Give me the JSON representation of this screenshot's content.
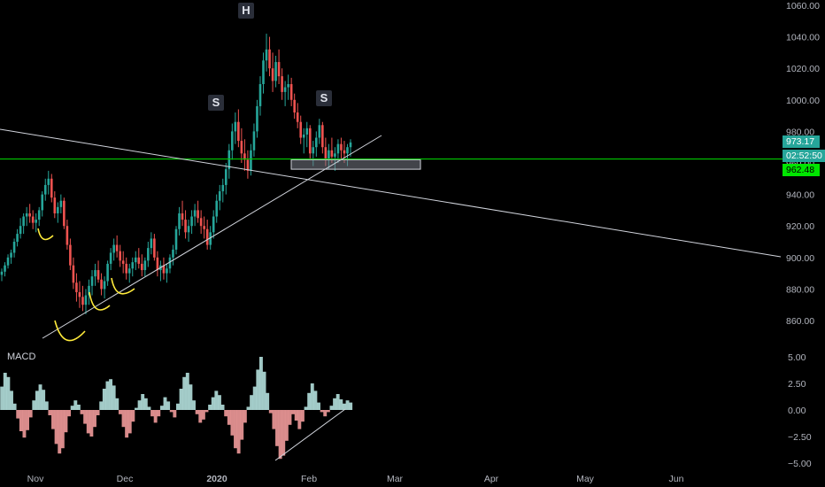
{
  "chart_data": {
    "type": "candlestick",
    "instrument_panel": "price",
    "price_axis": {
      "ticks": [
        1060,
        1040,
        1020,
        1000,
        980,
        960,
        940,
        920,
        900,
        880,
        860
      ],
      "tick_labels": [
        "1060.00",
        "1040.00",
        "1020.00",
        "1000.00",
        "980.00",
        "960.00",
        "940.00",
        "920.00",
        "900.00",
        "880.00",
        "860.00"
      ],
      "range": [
        847,
        1064
      ]
    },
    "time_axis": {
      "labels": [
        "Nov",
        "Dec",
        "2020",
        "Feb",
        "Mar",
        "Apr",
        "May",
        "Jun"
      ]
    },
    "badges": {
      "last_price": "973.17",
      "timer": "02:52:50",
      "level_price": "962.48"
    },
    "pattern_labels": [
      "H",
      "S",
      "S"
    ],
    "level_line_value": 962.48,
    "support_zone": {
      "low": 956,
      "high": 962
    },
    "candles": [
      [
        889,
        893,
        885,
        891
      ],
      [
        891,
        897,
        888,
        895
      ],
      [
        895,
        902,
        893,
        900
      ],
      [
        900,
        905,
        896,
        903
      ],
      [
        903,
        912,
        900,
        910
      ],
      [
        910,
        918,
        907,
        915
      ],
      [
        915,
        925,
        912,
        920
      ],
      [
        920,
        928,
        915,
        926
      ],
      [
        926,
        932,
        920,
        928
      ],
      [
        928,
        934,
        922,
        926
      ],
      [
        926,
        930,
        918,
        922
      ],
      [
        922,
        928,
        916,
        924
      ],
      [
        924,
        932,
        920,
        930
      ],
      [
        930,
        942,
        926,
        940
      ],
      [
        940,
        950,
        936,
        946
      ],
      [
        946,
        955,
        940,
        950
      ],
      [
        950,
        953,
        935,
        938
      ],
      [
        938,
        942,
        925,
        928
      ],
      [
        928,
        935,
        922,
        932
      ],
      [
        932,
        940,
        928,
        936
      ],
      [
        936,
        938,
        918,
        920
      ],
      [
        920,
        924,
        905,
        908
      ],
      [
        908,
        912,
        892,
        895
      ],
      [
        895,
        900,
        880,
        884
      ],
      [
        884,
        890,
        872,
        878
      ],
      [
        878,
        885,
        868,
        875
      ],
      [
        875,
        882,
        866,
        870
      ],
      [
        870,
        880,
        864,
        876
      ],
      [
        876,
        886,
        870,
        882
      ],
      [
        882,
        892,
        876,
        888
      ],
      [
        888,
        896,
        882,
        892
      ],
      [
        892,
        898,
        884,
        886
      ],
      [
        886,
        890,
        876,
        880
      ],
      [
        880,
        888,
        874,
        885
      ],
      [
        885,
        898,
        882,
        896
      ],
      [
        896,
        906,
        892,
        903
      ],
      [
        903,
        912,
        898,
        908
      ],
      [
        908,
        914,
        900,
        904
      ],
      [
        904,
        908,
        894,
        898
      ],
      [
        898,
        904,
        890,
        896
      ],
      [
        896,
        900,
        886,
        890
      ],
      [
        890,
        896,
        884,
        893
      ],
      [
        893,
        900,
        888,
        897
      ],
      [
        897,
        904,
        892,
        900
      ],
      [
        900,
        906,
        893,
        896
      ],
      [
        896,
        902,
        888,
        892
      ],
      [
        892,
        900,
        888,
        898
      ],
      [
        898,
        910,
        894,
        906
      ],
      [
        906,
        916,
        902,
        912
      ],
      [
        912,
        915,
        898,
        900
      ],
      [
        900,
        904,
        888,
        892
      ],
      [
        892,
        898,
        885,
        895
      ],
      [
        895,
        900,
        886,
        890
      ],
      [
        890,
        896,
        884,
        893
      ],
      [
        893,
        902,
        890,
        900
      ],
      [
        900,
        908,
        895,
        905
      ],
      [
        905,
        920,
        902,
        918
      ],
      [
        918,
        932,
        914,
        928
      ],
      [
        928,
        936,
        920,
        924
      ],
      [
        924,
        930,
        912,
        916
      ],
      [
        916,
        924,
        910,
        920
      ],
      [
        920,
        930,
        915,
        926
      ],
      [
        926,
        934,
        920,
        930
      ],
      [
        930,
        936,
        922,
        925
      ],
      [
        925,
        930,
        915,
        920
      ],
      [
        920,
        926,
        912,
        918
      ],
      [
        918,
        924,
        905,
        908
      ],
      [
        908,
        920,
        905,
        916
      ],
      [
        916,
        930,
        912,
        926
      ],
      [
        926,
        940,
        922,
        936
      ],
      [
        936,
        946,
        930,
        942
      ],
      [
        942,
        950,
        935,
        946
      ],
      [
        946,
        960,
        940,
        956
      ],
      [
        956,
        972,
        950,
        968
      ],
      [
        968,
        985,
        962,
        980
      ],
      [
        980,
        992,
        972,
        986
      ],
      [
        986,
        994,
        970,
        974
      ],
      [
        974,
        982,
        960,
        966
      ],
      [
        966,
        975,
        955,
        962
      ],
      [
        962,
        968,
        950,
        955
      ],
      [
        955,
        972,
        952,
        968
      ],
      [
        968,
        985,
        964,
        980
      ],
      [
        980,
        1000,
        976,
        996
      ],
      [
        996,
        1015,
        990,
        1010
      ],
      [
        1010,
        1030,
        1004,
        1025
      ],
      [
        1025,
        1042,
        1018,
        1032
      ],
      [
        1032,
        1040,
        1015,
        1020
      ],
      [
        1020,
        1030,
        1005,
        1012
      ],
      [
        1012,
        1028,
        1008,
        1024
      ],
      [
        1024,
        1032,
        1010,
        1015
      ],
      [
        1015,
        1020,
        1000,
        1005
      ],
      [
        1005,
        1012,
        996,
        1008
      ],
      [
        1008,
        1016,
        1000,
        1010
      ],
      [
        1010,
        1014,
        996,
        1000
      ],
      [
        1000,
        1004,
        988,
        992
      ],
      [
        992,
        998,
        982,
        986
      ],
      [
        986,
        990,
        972,
        976
      ],
      [
        976,
        982,
        966,
        978
      ],
      [
        978,
        986,
        970,
        982
      ],
      [
        982,
        984,
        962,
        966
      ],
      [
        966,
        974,
        958,
        970
      ],
      [
        970,
        980,
        964,
        976
      ],
      [
        976,
        988,
        972,
        984
      ],
      [
        984,
        986,
        966,
        970
      ],
      [
        970,
        976,
        958,
        962
      ],
      [
        962,
        972,
        956,
        968
      ],
      [
        968,
        976,
        960,
        964
      ],
      [
        964,
        970,
        955,
        966
      ],
      [
        966,
        975,
        960,
        972
      ],
      [
        972,
        976,
        962,
        968
      ],
      [
        968,
        974,
        960,
        966
      ],
      [
        966,
        972,
        958,
        970
      ],
      [
        970,
        975,
        964,
        973
      ]
    ],
    "macd_panel": {
      "title": "MACD",
      "ticks": [
        5,
        2.5,
        0,
        -2.5,
        -5
      ],
      "tick_labels": [
        "5.00",
        "2.50",
        "0.00",
        "−2.50",
        "−5.00"
      ],
      "range": [
        -5,
        5.3
      ],
      "histogram": [
        2.2,
        3.5,
        3.1,
        1.8,
        0.6,
        -0.8,
        -2.0,
        -2.6,
        -1.9,
        -0.7,
        0.9,
        1.8,
        2.4,
        1.9,
        0.8,
        -0.5,
        -1.8,
        -3.2,
        -4.1,
        -3.6,
        -2.1,
        -0.6,
        0.4,
        0.9,
        0.5,
        -0.4,
        -1.3,
        -2.2,
        -2.5,
        -1.6,
        -0.5,
        0.8,
        2.0,
        2.7,
        2.9,
        2.3,
        1.1,
        -0.4,
        -1.6,
        -2.6,
        -2.2,
        -1.1,
        0.2,
        0.9,
        1.5,
        1.1,
        0.3,
        -0.6,
        -1.2,
        -0.6,
        0.4,
        1.2,
        0.8,
        -0.2,
        -0.7,
        0.6,
        2.0,
        3.1,
        3.5,
        2.4,
        0.9,
        -0.4,
        -1.2,
        -0.9,
        -0.2,
        0.5,
        1.2,
        1.8,
        1.4,
        0.5,
        -0.6,
        -1.4,
        -2.4,
        -3.6,
        -4.1,
        -2.8,
        -1.2,
        0.3,
        1.4,
        2.2,
        3.8,
        5.0,
        3.6,
        1.6,
        -0.3,
        -1.8,
        -3.4,
        -4.6,
        -4.3,
        -2.9,
        -1.4,
        -0.4,
        -1.0,
        -1.8,
        -1.1,
        0.3,
        1.6,
        2.5,
        1.8,
        0.7,
        -0.2,
        -0.6,
        -0.2,
        0.4,
        1.1,
        1.5,
        1.0,
        0.6,
        0.9,
        0.7
      ]
    }
  }
}
